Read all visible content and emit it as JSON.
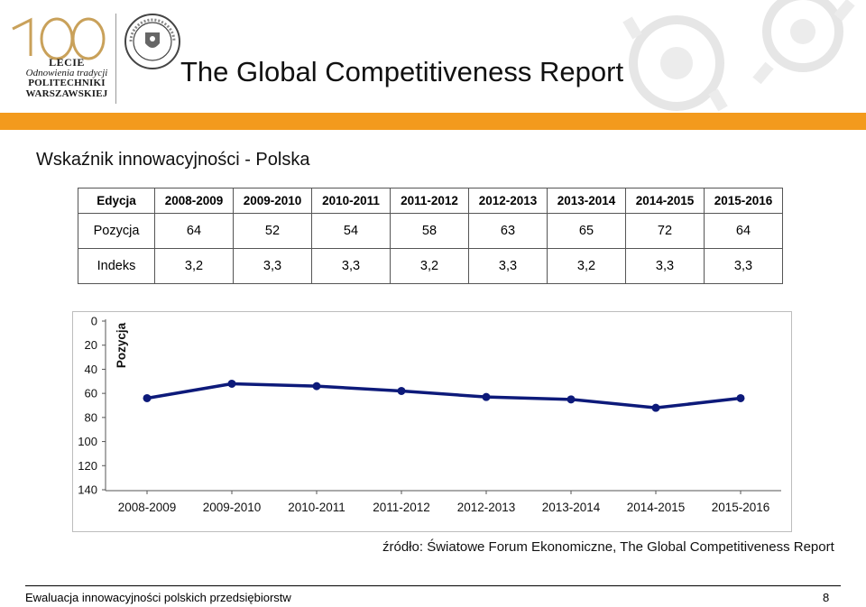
{
  "header": {
    "logo_lines": [
      "LECIE",
      "Odnowienia tradycji",
      "POLITECHNIKI",
      "WARSZAWSKIEJ"
    ],
    "logo_number": "100",
    "title": "The Global Competitiveness Report"
  },
  "subtitle": "Wskaźnik innowacyjności - Polska",
  "table": {
    "header": [
      "Edycja",
      "2008-2009",
      "2009-2010",
      "2010-2011",
      "2011-2012",
      "2012-2013",
      "2013-2014",
      "2014-2015",
      "2015-2016"
    ],
    "rows": [
      [
        "Pozycja",
        "64",
        "52",
        "54",
        "58",
        "63",
        "65",
        "72",
        "64"
      ],
      [
        "Indeks",
        "3,2",
        "3,3",
        "3,3",
        "3,2",
        "3,3",
        "3,2",
        "3,3",
        "3,3"
      ]
    ]
  },
  "chart_data": {
    "type": "line",
    "title": "",
    "xlabel": "",
    "ylabel": "Pozycja",
    "categories": [
      "2008-2009",
      "2009-2010",
      "2010-2011",
      "2011-2012",
      "2012-2013",
      "2013-2014",
      "2014-2015",
      "2015-2016"
    ],
    "series": [
      {
        "name": "Pozycja",
        "values": [
          64,
          52,
          54,
          58,
          63,
          65,
          72,
          64
        ]
      }
    ],
    "ylim": [
      0,
      140
    ],
    "y_reversed": true,
    "yticks": [
      "0",
      "20",
      "40",
      "60",
      "80",
      "100",
      "120",
      "140"
    ],
    "grid": false,
    "line_color": "#0d1a7a"
  },
  "source": "źródło: Światowe Forum Ekonomiczne, The Global Competitiveness Report",
  "footer": {
    "left": "Ewaluacja innowacyjności polskich przedsiębiorstw",
    "page": "8"
  },
  "colors": {
    "accent": "#f39a1d",
    "logo_gold": "#c9a15a"
  }
}
